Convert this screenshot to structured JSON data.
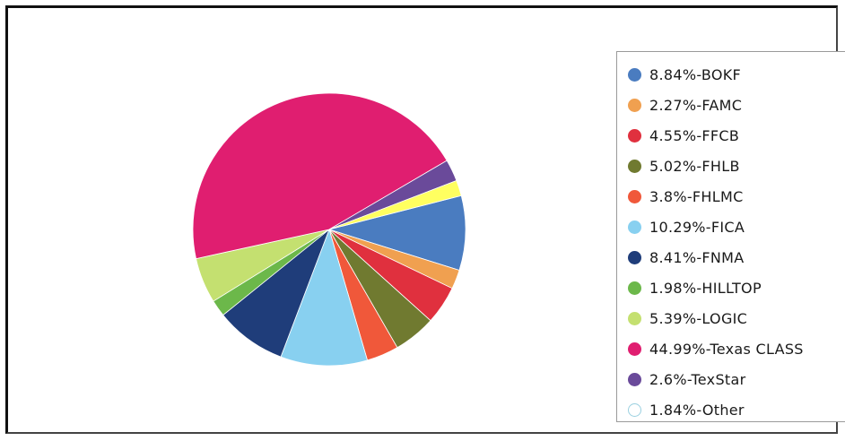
{
  "chart_data": {
    "type": "pie",
    "slices": [
      {
        "label": "8.84%-BOKF",
        "name": "BOKF",
        "value": 8.84,
        "color": "#4a7cc0"
      },
      {
        "label": "2.27%-FAMC",
        "name": "FAMC",
        "value": 2.27,
        "color": "#f0a050"
      },
      {
        "label": "4.55%-FFCB",
        "name": "FFCB",
        "value": 4.55,
        "color": "#e0303e"
      },
      {
        "label": "5.02%-FHLB",
        "name": "FHLB",
        "value": 5.02,
        "color": "#707a30"
      },
      {
        "label": "3.8%-FHLMC",
        "name": "FHLMC",
        "value": 3.8,
        "color": "#f0583a"
      },
      {
        "label": "10.29%-FICA",
        "name": "FICA",
        "value": 10.29,
        "color": "#88d0f0"
      },
      {
        "label": "8.41%-FNMA",
        "name": "FNMA",
        "value": 8.41,
        "color": "#1f3d7a"
      },
      {
        "label": "1.98%-HILLTOP",
        "name": "HILLTOP",
        "value": 1.98,
        "color": "#6cb84a"
      },
      {
        "label": "5.39%-LOGIC",
        "name": "LOGIC",
        "value": 5.39,
        "color": "#c4e070"
      },
      {
        "label": "44.99%-Texas CLASS",
        "name": "Texas CLASS",
        "value": 44.99,
        "color": "#e01e70"
      },
      {
        "label": "2.6%-TexStar",
        "name": "TexStar",
        "value": 2.6,
        "color": "#6a4a9a"
      },
      {
        "label": "1.84%-Other",
        "name": "Other",
        "value": 1.84,
        "color": "#ffff60"
      }
    ],
    "legend_placement": "right"
  },
  "legend_swatch_other_outline": "#9ad0e0"
}
